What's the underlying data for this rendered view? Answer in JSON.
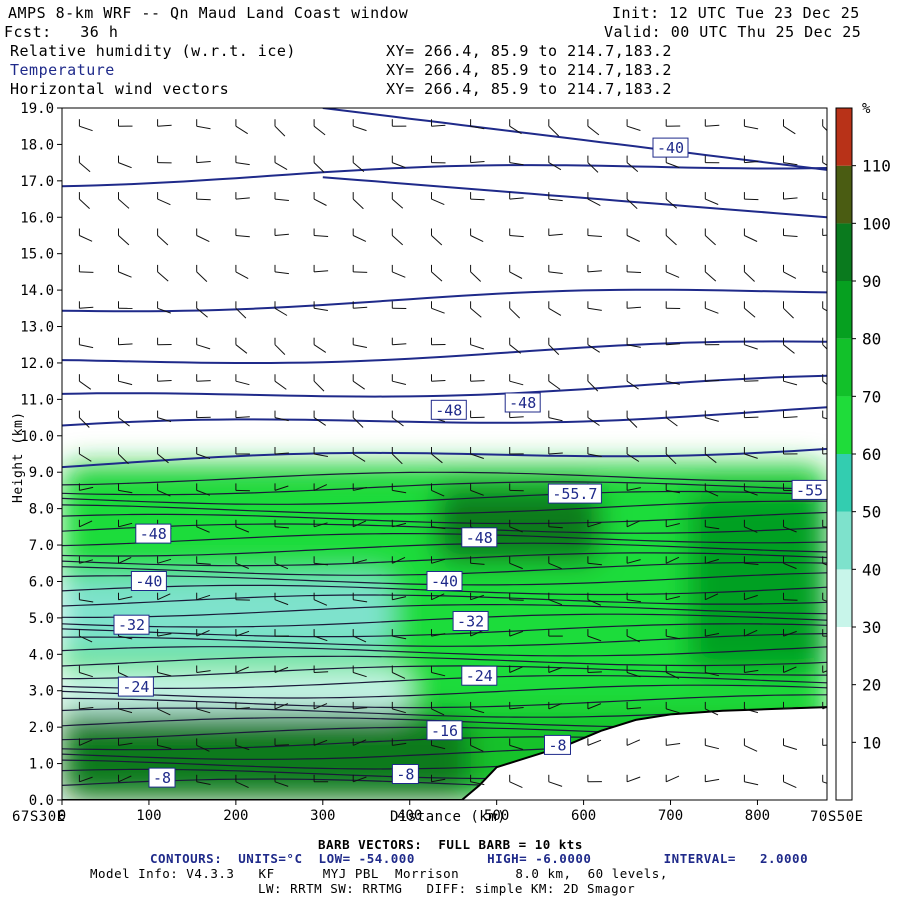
{
  "header": {
    "title": "AMPS 8-km WRF -- Qn Maud Land Coast window",
    "init": "Init: 12 UTC Tue 23 Dec 25",
    "fcst": "Fcst:   36 h",
    "valid": "Valid: 00 UTC Thu 25 Dec 25",
    "fields": [
      {
        "name": "Relative humidity (w.r.t. ice)",
        "xy": "XY= 266.4, 85.9 to 214.7,183.2"
      },
      {
        "name": "Temperature",
        "xy": "XY= 266.4, 85.9 to 214.7,183.2"
      },
      {
        "name": "Horizontal wind vectors",
        "xy": "XY= 266.4, 85.9 to 214.7,183.2"
      }
    ]
  },
  "chart_data": {
    "type": "heatmap",
    "title": "AMPS 8-km WRF -- Qn Maud Land Coast window",
    "xlabel": "Distance (km)",
    "ylabel": "Height (km)",
    "xlim": [
      0,
      880
    ],
    "ylim": [
      0,
      19
    ],
    "x_ticks": [
      0,
      100,
      200,
      300,
      400,
      500,
      600,
      700,
      800
    ],
    "y_ticks": [
      "0.0",
      "1.0",
      "2.0",
      "3.0",
      "4.0",
      "5.0",
      "6.0",
      "7.0",
      "8.0",
      "9.0",
      "10.0",
      "11.0",
      "12.0",
      "13.0",
      "14.0",
      "15.0",
      "16.0",
      "17.0",
      "18.0",
      "19.0"
    ],
    "x_end_labels": {
      "left": "67S30E",
      "right": "70S50E"
    },
    "colorbar": {
      "unit": "%",
      "ticks": [
        10,
        20,
        30,
        40,
        50,
        60,
        70,
        80,
        90,
        100,
        110
      ],
      "colors": [
        "#ffffff",
        "#ffffff",
        "#ffffff",
        "#c8f5ea",
        "#7ee2cc",
        "#33cdb0",
        "#1fdc3a",
        "#12c12a",
        "#06a020",
        "#0a7a1e",
        "#4a5c12",
        "#b83218"
      ]
    },
    "rh_regions": [
      {
        "x0": 0,
        "x1": 880,
        "z0": 0,
        "z1": 9.2,
        "rh": 75
      },
      {
        "x0": 0,
        "x1": 880,
        "z0": 2.4,
        "z1": 8.9,
        "rh": 62
      },
      {
        "x0": 0,
        "x1": 380,
        "z0": 4.0,
        "z1": 6.2,
        "rh": 45
      },
      {
        "x0": 0,
        "x1": 400,
        "z0": 2.4,
        "z1": 3.6,
        "rh": 35
      },
      {
        "x0": 0,
        "x1": 470,
        "z0": 0,
        "z1": 2.4,
        "rh": 92
      },
      {
        "x0": 430,
        "x1": 620,
        "z0": 6.5,
        "z1": 8.6,
        "rh": 98
      },
      {
        "x0": 720,
        "x1": 880,
        "z0": 3.5,
        "z1": 8.5,
        "rh": 88
      }
    ],
    "temperature_contour_labels": [
      {
        "x": 700,
        "z": 17.9,
        "value": "-40"
      },
      {
        "x": 445,
        "z": 10.7,
        "value": "-48"
      },
      {
        "x": 530,
        "z": 10.9,
        "value": "-48"
      },
      {
        "x": 590,
        "z": 8.4,
        "value": "-55.7"
      },
      {
        "x": 860,
        "z": 8.5,
        "value": "-55"
      },
      {
        "x": 105,
        "z": 7.3,
        "value": "-48"
      },
      {
        "x": 480,
        "z": 7.2,
        "value": "-48"
      },
      {
        "x": 100,
        "z": 6.0,
        "value": "-40"
      },
      {
        "x": 440,
        "z": 6.0,
        "value": "-40"
      },
      {
        "x": 80,
        "z": 4.8,
        "value": "-32"
      },
      {
        "x": 470,
        "z": 4.9,
        "value": "-32"
      },
      {
        "x": 85,
        "z": 3.1,
        "value": "-24"
      },
      {
        "x": 480,
        "z": 3.4,
        "value": "-24"
      },
      {
        "x": 440,
        "z": 1.9,
        "value": "-16"
      },
      {
        "x": 570,
        "z": 1.5,
        "value": "-8"
      },
      {
        "x": 115,
        "z": 0.6,
        "value": "-8"
      },
      {
        "x": 395,
        "z": 0.7,
        "value": "-8"
      }
    ],
    "contour_info": {
      "units": "CONTOURS:  UNITS=°C  LOW= -54.000         HIGH= -6.0000         INTERVAL=   2.0000"
    },
    "terrain": [
      {
        "x": 0,
        "z": 0
      },
      {
        "x": 460,
        "z": 0
      },
      {
        "x": 480,
        "z": 0.4
      },
      {
        "x": 500,
        "z": 0.9
      },
      {
        "x": 540,
        "z": 1.2
      },
      {
        "x": 580,
        "z": 1.5
      },
      {
        "x": 620,
        "z": 1.9
      },
      {
        "x": 660,
        "z": 2.2
      },
      {
        "x": 700,
        "z": 2.35
      },
      {
        "x": 760,
        "z": 2.45
      },
      {
        "x": 820,
        "z": 2.5
      },
      {
        "x": 880,
        "z": 2.55
      }
    ]
  },
  "footer": {
    "barb": "BARB VECTORS:  FULL BARB = 10 kts",
    "contours": "CONTOURS:  UNITS=°C  LOW= -54.000         HIGH= -6.0000         INTERVAL=   2.0000",
    "model1": "Model Info: V4.3.3   KF      MYJ PBL  Morrison       8.0 km,  60 levels,",
    "model2": "LW: RRTM SW: RRTMG   DIFF: simple KM: 2D Smagor"
  }
}
